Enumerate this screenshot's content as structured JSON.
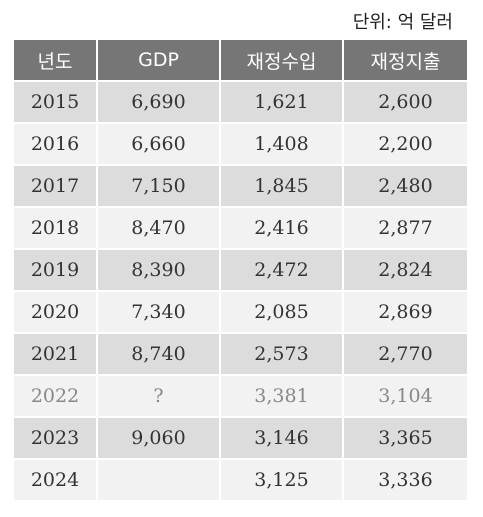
{
  "unit_label": "단위: 억 달러",
  "table": {
    "headers": [
      "년도",
      "GDP",
      "재정수입",
      "재정지출"
    ],
    "rows": [
      [
        "2015",
        "6,690",
        "1,621",
        "2,600"
      ],
      [
        "2016",
        "6,660",
        "1,408",
        "2,200"
      ],
      [
        "2017",
        "7,150",
        "1,845",
        "2,480"
      ],
      [
        "2018",
        "8,470",
        "2,416",
        "2,877"
      ],
      [
        "2019",
        "8,390",
        "2,472",
        "2,824"
      ],
      [
        "2020",
        "7,340",
        "2,085",
        "2,869"
      ],
      [
        "2021",
        "8,740",
        "2,573",
        "2,770"
      ],
      [
        "2022",
        "?",
        "3,381",
        "3,104"
      ],
      [
        "2023",
        "9,060",
        "3,146",
        "3,365"
      ],
      [
        "2024",
        "",
        "3,125",
        "3,336"
      ]
    ]
  }
}
